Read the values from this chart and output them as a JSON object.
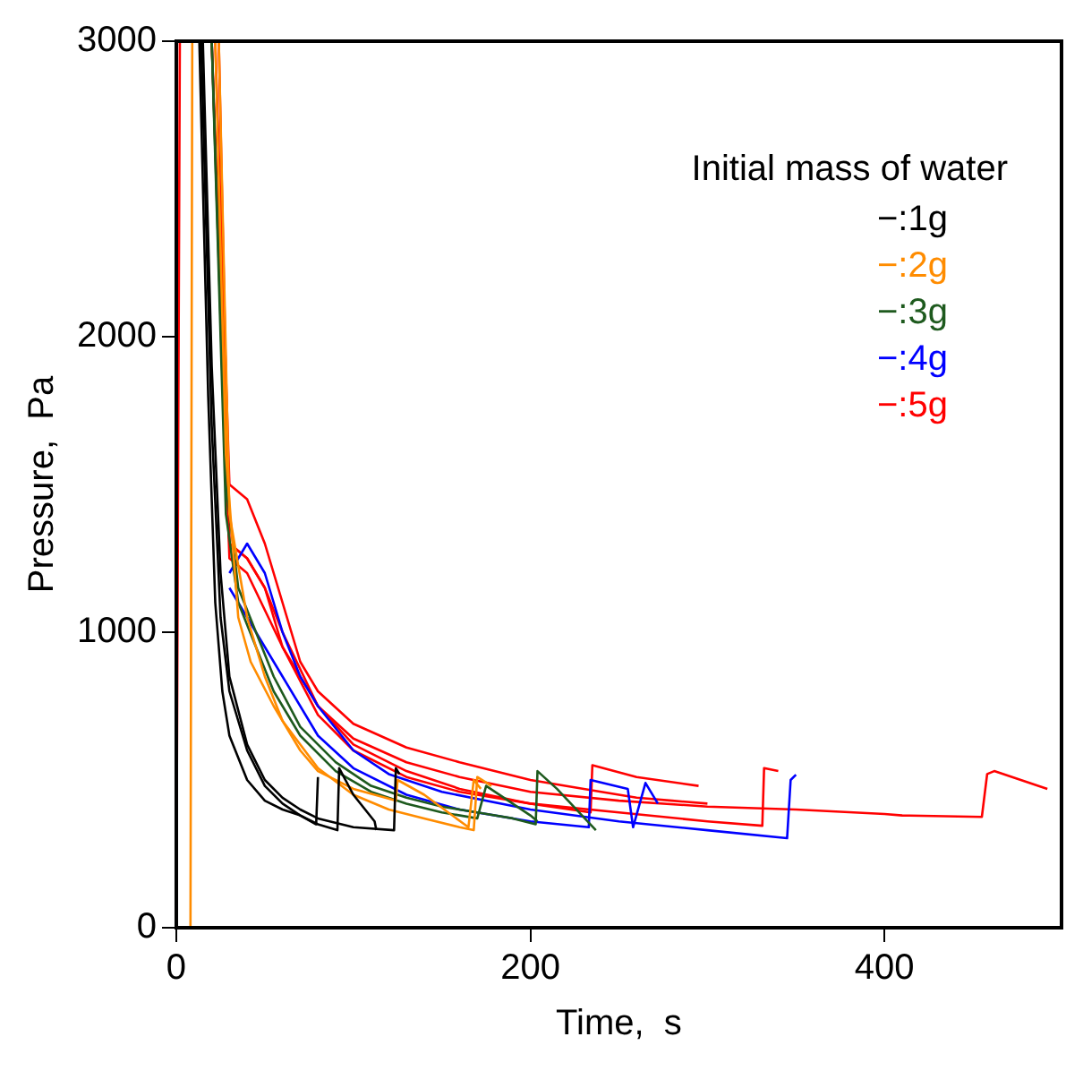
{
  "chart_data": {
    "type": "line",
    "xlabel": "Time,  s",
    "ylabel": "Pressure,  Pa",
    "legend_title": "Initial mass of water",
    "legend": "top right",
    "grid": false,
    "marker": "none",
    "line_style": "solid",
    "xlim": [
      0,
      500
    ],
    "xticks": [
      0,
      200,
      400
    ],
    "ylim": [
      0,
      3000
    ],
    "yticks": [
      0,
      1000,
      2000,
      3000
    ],
    "series": [
      {
        "name": "−:1g",
        "color": "#000000",
        "x": [
          13,
          18,
          22,
          26,
          30,
          40,
          50,
          60,
          70,
          79,
          80
        ],
        "values": [
          3000,
          1800,
          1100,
          800,
          650,
          500,
          430,
          400,
          380,
          350,
          510
        ]
      },
      {
        "color": "#000000",
        "x": [
          14,
          20,
          25,
          30,
          40,
          50,
          60,
          70,
          80,
          91,
          92,
          100,
          112,
          113
        ],
        "values": [
          3000,
          1700,
          1050,
          800,
          600,
          480,
          420,
          380,
          350,
          330,
          540,
          450,
          360,
          330
        ]
      },
      {
        "color": "#000000",
        "x": [
          15,
          20,
          25,
          30,
          40,
          50,
          60,
          70,
          80,
          100,
          123,
          124,
          126
        ],
        "values": [
          3000,
          1900,
          1200,
          850,
          620,
          500,
          440,
          400,
          370,
          340,
          330,
          540,
          520
        ]
      },
      {
        "name": "−:2g",
        "color": "#ff8c00",
        "x": [
          8,
          9,
          10,
          22,
          28,
          35,
          42,
          55,
          70,
          80,
          100,
          124,
          125,
          140,
          165,
          168,
          172
        ],
        "values": [
          0,
          3000,
          null,
          3000,
          1600,
          1050,
          900,
          750,
          600,
          530,
          470,
          430,
          500,
          450,
          340,
          500,
          470
        ]
      },
      {
        "color": "#ff8c00",
        "x": [
          24,
          30,
          40,
          50,
          60,
          80,
          100,
          120,
          140,
          160,
          168,
          170,
          178
        ],
        "values": [
          3000,
          1400,
          1050,
          850,
          700,
          540,
          450,
          400,
          370,
          340,
          330,
          510,
          480
        ]
      },
      {
        "name": "−:3g",
        "color": "#1e5a1e",
        "x": [
          20,
          28,
          35,
          45,
          55,
          70,
          90,
          110,
          130,
          150,
          170,
          190,
          203,
          204,
          215,
          237
        ],
        "values": [
          3000,
          1500,
          1150,
          1000,
          850,
          680,
          560,
          480,
          440,
          410,
          390,
          370,
          350,
          530,
          470,
          330
        ]
      },
      {
        "color": "#1e5a1e",
        "x": [
          20,
          28,
          35,
          45,
          55,
          70,
          90,
          110,
          130,
          150,
          170,
          175,
          200,
          204
        ],
        "values": [
          3000,
          1400,
          1100,
          950,
          800,
          650,
          530,
          460,
          420,
          390,
          370,
          480,
          380,
          360
        ]
      },
      {
        "name": "−:4g",
        "color": "#0000ff",
        "x": [
          30,
          40,
          50,
          60,
          70,
          80,
          100,
          120,
          150,
          200,
          250,
          300,
          345,
          347,
          350
        ],
        "values": [
          1200,
          1300,
          1200,
          1000,
          850,
          750,
          600,
          520,
          460,
          400,
          360,
          330,
          303,
          500,
          518
        ]
      },
      {
        "color": "#0000ff",
        "x": [
          30,
          40,
          50,
          60,
          80,
          100,
          130,
          160,
          200,
          233,
          234,
          255,
          258,
          265,
          272
        ],
        "values": [
          1150,
          1050,
          950,
          850,
          650,
          540,
          450,
          400,
          360,
          340,
          500,
          470,
          340,
          490,
          420
        ]
      },
      {
        "name": "−:5g",
        "color": "#ff0000",
        "x": [
          0,
          2,
          3,
          24,
          30,
          40,
          50,
          60,
          80,
          100,
          130,
          160,
          200,
          250,
          300,
          350,
          400,
          410,
          455,
          458,
          462,
          492
        ],
        "values": [
          0,
          3000,
          null,
          3000,
          1300,
          1250,
          1150,
          950,
          750,
          640,
          560,
          510,
          460,
          430,
          410,
          400,
          385,
          380,
          375,
          520,
          530,
          470
        ]
      },
      {
        "color": "#ff0000",
        "x": [
          22,
          30,
          40,
          50,
          60,
          70,
          80,
          100,
          130,
          160,
          200,
          240,
          260,
          280,
          300
        ],
        "values": [
          3000,
          1500,
          1450,
          1300,
          1100,
          900,
          800,
          690,
          610,
          560,
          500,
          460,
          440,
          430,
          420
        ]
      },
      {
        "color": "#ff0000",
        "x": [
          20,
          30,
          40,
          50,
          60,
          80,
          100,
          130,
          160,
          200,
          234,
          235,
          260,
          295
        ],
        "values": [
          3000,
          1300,
          1250,
          1150,
          1000,
          750,
          620,
          530,
          470,
          420,
          390,
          550,
          510,
          480
        ]
      },
      {
        "color": "#ff0000",
        "x": [
          20,
          30,
          40,
          60,
          80,
          100,
          130,
          160,
          200,
          250,
          300,
          331,
          332,
          340
        ],
        "values": [
          3000,
          1250,
          1200,
          950,
          720,
          600,
          510,
          460,
          420,
          390,
          360,
          345,
          540,
          530
        ]
      }
    ]
  }
}
